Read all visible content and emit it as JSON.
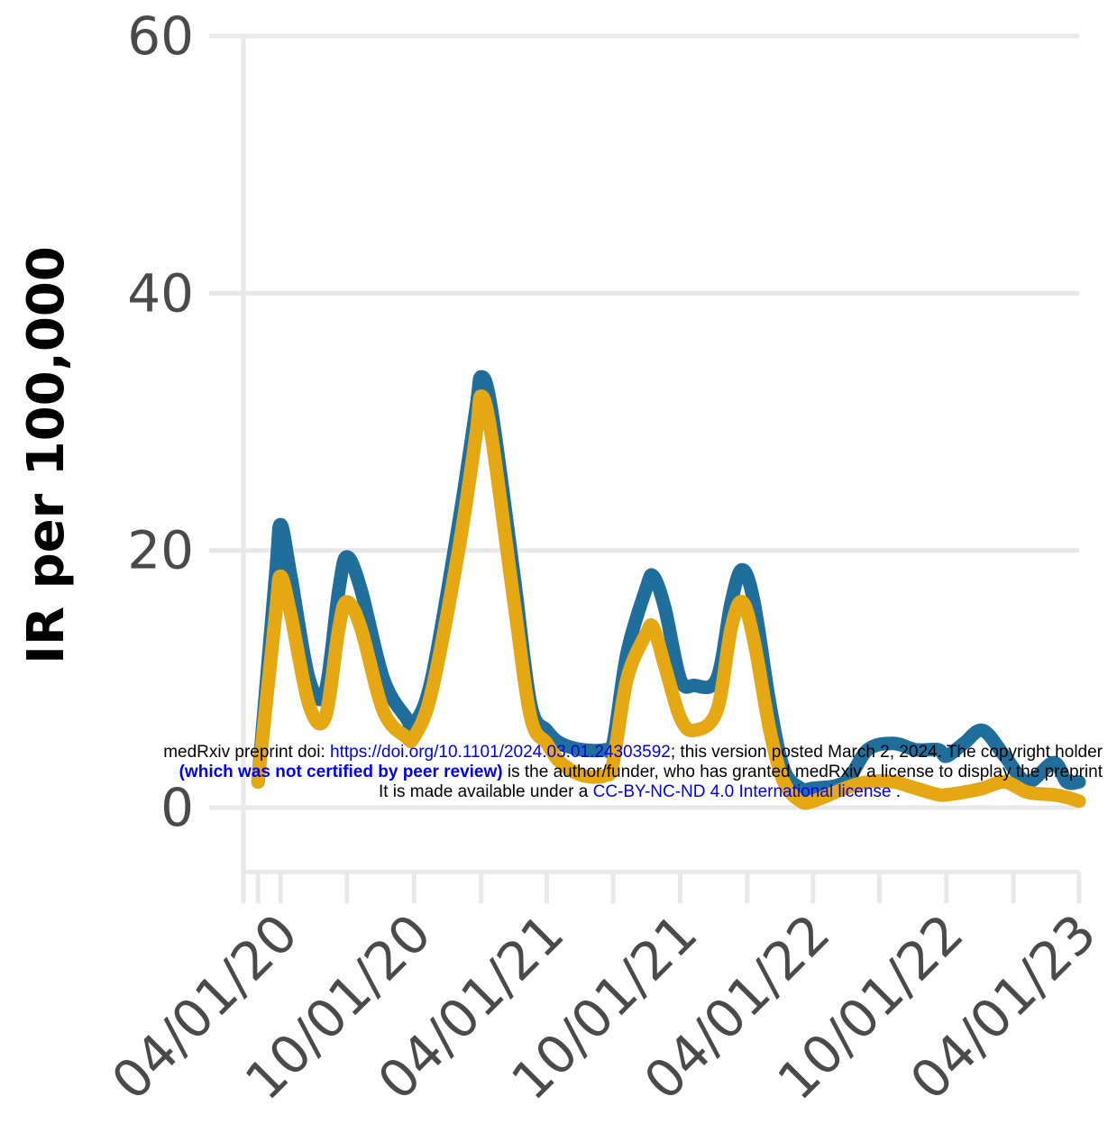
{
  "chart_data": {
    "type": "line",
    "ylabel": "IR per 100,000",
    "xlabel": "",
    "ylim": [
      -5,
      60
    ],
    "y_ticks": [
      0,
      20,
      40,
      60
    ],
    "x_range": [
      "2020-02-10",
      "2023-04-01"
    ],
    "x_ticks": [
      {
        "date": "2020-04-01",
        "label": "04/01/20"
      },
      {
        "date": "2020-10-01",
        "label": "10/01/20"
      },
      {
        "date": "2021-04-01",
        "label": "04/01/21"
      },
      {
        "date": "2021-10-01",
        "label": "10/01/21"
      },
      {
        "date": "2022-04-01",
        "label": "04/01/22"
      },
      {
        "date": "2022-10-01",
        "label": "10/01/22"
      },
      {
        "date": "2023-04-01",
        "label": "04/01/23"
      }
    ],
    "x_minor_ticks": [
      "2020-03-01",
      "2020-07-01",
      "2021-01-01",
      "2021-07-01",
      "2022-01-01",
      "2022-07-01",
      "2023-01-01"
    ],
    "grid": true,
    "series": [
      {
        "color": "#1f6e9c",
        "points": [
          [
            "2020-03-01",
            2
          ],
          [
            "2020-03-25",
            18
          ],
          [
            "2020-04-01",
            22
          ],
          [
            "2020-04-15",
            18
          ],
          [
            "2020-05-10",
            10
          ],
          [
            "2020-06-01",
            9
          ],
          [
            "2020-06-20",
            17
          ],
          [
            "2020-07-01",
            19.5
          ],
          [
            "2020-07-20",
            17
          ],
          [
            "2020-08-20",
            10
          ],
          [
            "2020-09-20",
            7
          ],
          [
            "2020-10-01",
            6.5
          ],
          [
            "2020-10-25",
            10
          ],
          [
            "2020-12-01",
            22
          ],
          [
            "2020-12-25",
            31
          ],
          [
            "2021-01-01",
            33.5
          ],
          [
            "2021-01-15",
            31
          ],
          [
            "2021-02-15",
            18
          ],
          [
            "2021-03-10",
            8
          ],
          [
            "2021-04-01",
            6
          ],
          [
            "2021-04-20",
            5
          ],
          [
            "2021-05-20",
            4.5
          ],
          [
            "2021-06-20",
            4.5
          ],
          [
            "2021-07-01",
            5
          ],
          [
            "2021-07-20",
            12
          ],
          [
            "2021-08-15",
            17
          ],
          [
            "2021-08-25",
            18
          ],
          [
            "2021-09-10",
            15.5
          ],
          [
            "2021-10-01",
            10
          ],
          [
            "2021-10-20",
            9.5
          ],
          [
            "2021-11-20",
            10
          ],
          [
            "2021-12-10",
            16
          ],
          [
            "2021-12-25",
            18.5
          ],
          [
            "2022-01-10",
            16
          ],
          [
            "2022-02-01",
            8
          ],
          [
            "2022-02-20",
            3
          ],
          [
            "2022-03-15",
            1.5
          ],
          [
            "2022-04-01",
            1.5
          ],
          [
            "2022-05-15",
            2
          ],
          [
            "2022-06-15",
            4.5
          ],
          [
            "2022-07-20",
            5
          ],
          [
            "2022-08-20",
            4.5
          ],
          [
            "2022-09-20",
            4.5
          ],
          [
            "2022-10-01",
            4
          ],
          [
            "2022-10-25",
            5
          ],
          [
            "2022-11-20",
            6
          ],
          [
            "2022-12-20",
            4
          ],
          [
            "2023-01-20",
            2
          ],
          [
            "2023-02-25",
            3.5
          ],
          [
            "2023-03-15",
            2
          ],
          [
            "2023-04-01",
            2
          ]
        ]
      },
      {
        "color": "#e6a812",
        "points": [
          [
            "2020-03-01",
            2
          ],
          [
            "2020-03-25",
            15
          ],
          [
            "2020-04-01",
            18
          ],
          [
            "2020-04-15",
            15
          ],
          [
            "2020-05-10",
            8
          ],
          [
            "2020-06-01",
            7
          ],
          [
            "2020-06-20",
            14
          ],
          [
            "2020-07-01",
            16
          ],
          [
            "2020-07-20",
            14
          ],
          [
            "2020-08-20",
            7.5
          ],
          [
            "2020-09-20",
            5.5
          ],
          [
            "2020-10-01",
            5.5
          ],
          [
            "2020-10-25",
            9
          ],
          [
            "2020-12-01",
            20
          ],
          [
            "2020-12-25",
            29
          ],
          [
            "2021-01-01",
            32
          ],
          [
            "2021-01-15",
            29
          ],
          [
            "2021-02-15",
            16
          ],
          [
            "2021-03-10",
            7
          ],
          [
            "2021-04-01",
            5
          ],
          [
            "2021-04-20",
            3.5
          ],
          [
            "2021-05-20",
            2.5
          ],
          [
            "2021-06-20",
            2.5
          ],
          [
            "2021-07-01",
            3.5
          ],
          [
            "2021-07-20",
            10
          ],
          [
            "2021-08-15",
            13.5
          ],
          [
            "2021-08-25",
            14
          ],
          [
            "2021-09-10",
            11
          ],
          [
            "2021-10-01",
            7
          ],
          [
            "2021-10-20",
            6
          ],
          [
            "2021-11-20",
            7.5
          ],
          [
            "2021-12-10",
            14
          ],
          [
            "2021-12-25",
            16
          ],
          [
            "2022-01-10",
            13
          ],
          [
            "2022-02-01",
            6
          ],
          [
            "2022-02-20",
            2
          ],
          [
            "2022-03-15",
            0.5
          ],
          [
            "2022-04-01",
            0.5
          ],
          [
            "2022-05-15",
            1.5
          ],
          [
            "2022-06-15",
            2
          ],
          [
            "2022-07-20",
            2
          ],
          [
            "2022-08-20",
            1.5
          ],
          [
            "2022-09-20",
            1
          ],
          [
            "2022-10-01",
            1
          ],
          [
            "2022-10-25",
            1.2
          ],
          [
            "2022-11-20",
            1.5
          ],
          [
            "2022-12-20",
            2
          ],
          [
            "2023-01-20",
            1.2
          ],
          [
            "2023-02-25",
            1
          ],
          [
            "2023-03-15",
            0.8
          ],
          [
            "2023-04-01",
            0.5
          ]
        ]
      }
    ]
  },
  "watermark": {
    "line1_prefix": "medRxiv preprint doi: ",
    "line1_link": "https://doi.org/10.1101/2024.03.01.24303592",
    "line1_suffix": "; this version posted March 2, 2024. The copyright holder",
    "line2_bold": "(which was not certified by peer review)",
    "line2_suffix": " is the author/funder, who has granted medRxiv a license to display the preprint",
    "line3_prefix": "It is made available under a ",
    "line3_link": "CC-BY-NC-ND 4.0 International license",
    "line3_suffix": " ."
  }
}
